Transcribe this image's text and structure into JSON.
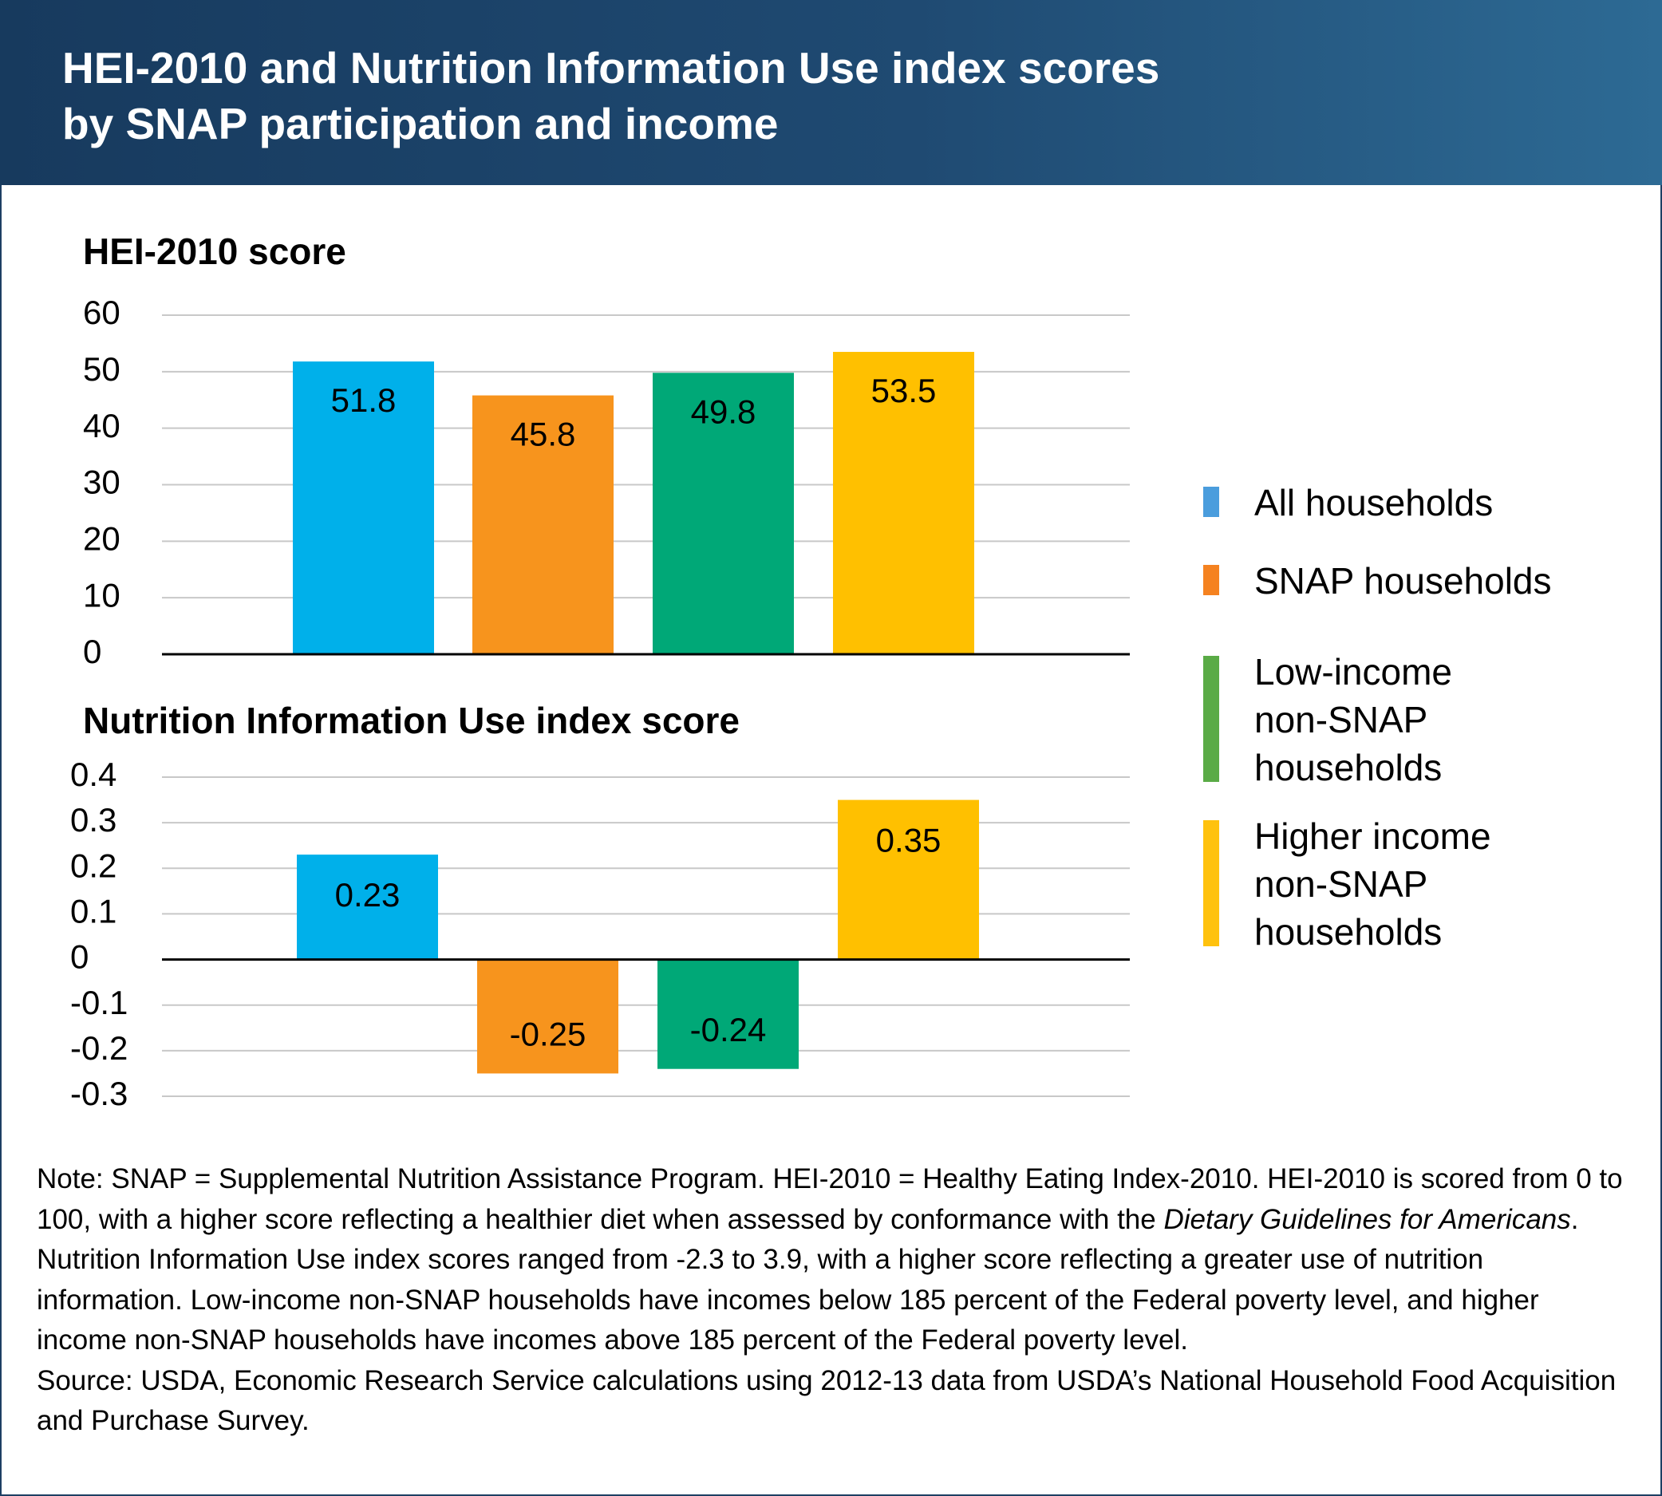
{
  "header": {
    "title_line1": "HEI-2010 and Nutrition Information Use index scores",
    "title_line2": "by SNAP participation and income"
  },
  "colors": {
    "banner": "#1f4a72",
    "all_households": "#00b0ea",
    "snap_households": "#f7941d",
    "low_income_non_snap": "#00a877",
    "higher_income_non_snap": "#ffc000",
    "legend_all": "#4a9ddd",
    "legend_snap": "#f58220",
    "legend_low": "#5aab46",
    "legend_higher": "#ffc20e",
    "gridline": "#c8c8c8",
    "axis": "#000000"
  },
  "chart_data": [
    {
      "type": "bar",
      "title": "HEI-2010 score",
      "categories": [
        "All households",
        "SNAP households",
        "Low-income non-SNAP households",
        "Higher income non-SNAP households"
      ],
      "values": [
        51.8,
        45.8,
        49.8,
        53.5
      ],
      "data_labels": [
        "51.8",
        "45.8",
        "49.8",
        "53.5"
      ],
      "ylim": [
        0,
        60
      ],
      "yticks": [
        0,
        10,
        20,
        30,
        40,
        50,
        60
      ],
      "ytick_labels": [
        "0",
        "10",
        "20",
        "30",
        "40",
        "50",
        "60"
      ],
      "grid": true
    },
    {
      "type": "bar",
      "title": "Nutrition Information Use index score",
      "categories": [
        "All households",
        "SNAP households",
        "Low-income non-SNAP households",
        "Higher income non-SNAP households"
      ],
      "values": [
        0.23,
        -0.25,
        -0.24,
        0.35
      ],
      "data_labels": [
        "0.23",
        "-0.25",
        "-0.24",
        "0.35"
      ],
      "ylim": [
        -0.3,
        0.4
      ],
      "yticks": [
        0.4,
        0.3,
        0.2,
        0.1,
        0,
        -0.1,
        -0.2,
        -0.3
      ],
      "ytick_labels": [
        "0.4",
        "0.3",
        "0.2",
        "0.1",
        "0",
        "-0.1",
        "-0.2",
        "-0.3"
      ],
      "grid": true
    }
  ],
  "legend": {
    "placement": "right",
    "items": [
      {
        "label": "All households",
        "color": "#4a9ddd"
      },
      {
        "label": "SNAP households",
        "color": "#f58220"
      },
      {
        "label": "Low-income\nnon-SNAP\nhouseholds",
        "color": "#5aab46"
      },
      {
        "label": "Higher income\nnon-SNAP\nhouseholds",
        "color": "#ffc20e"
      }
    ]
  },
  "note": {
    "text_before_italic": "Note: SNAP = Supplemental Nutrition Assistance Program. HEI-2010 = Healthy Eating Index-2010. HEI-2010 is scored from 0 to 100, with a higher score reflecting a healthier diet when assessed by conformance with the ",
    "italic": "Dietary Guidelines for Americans",
    "text_after_italic": ". Nutrition Information Use index scores ranged from -2.3 to 3.9, with a higher score reflecting a greater use of nutrition information. Low-income non-SNAP households have incomes below 185 percent of the Federal poverty level, and higher income non-SNAP households have incomes above 185 percent of the Federal poverty level.",
    "source": "Source: USDA, Economic Research Service calculations using 2012-13 data from USDA’s National Household Food Acquisition and Purchase Survey."
  }
}
